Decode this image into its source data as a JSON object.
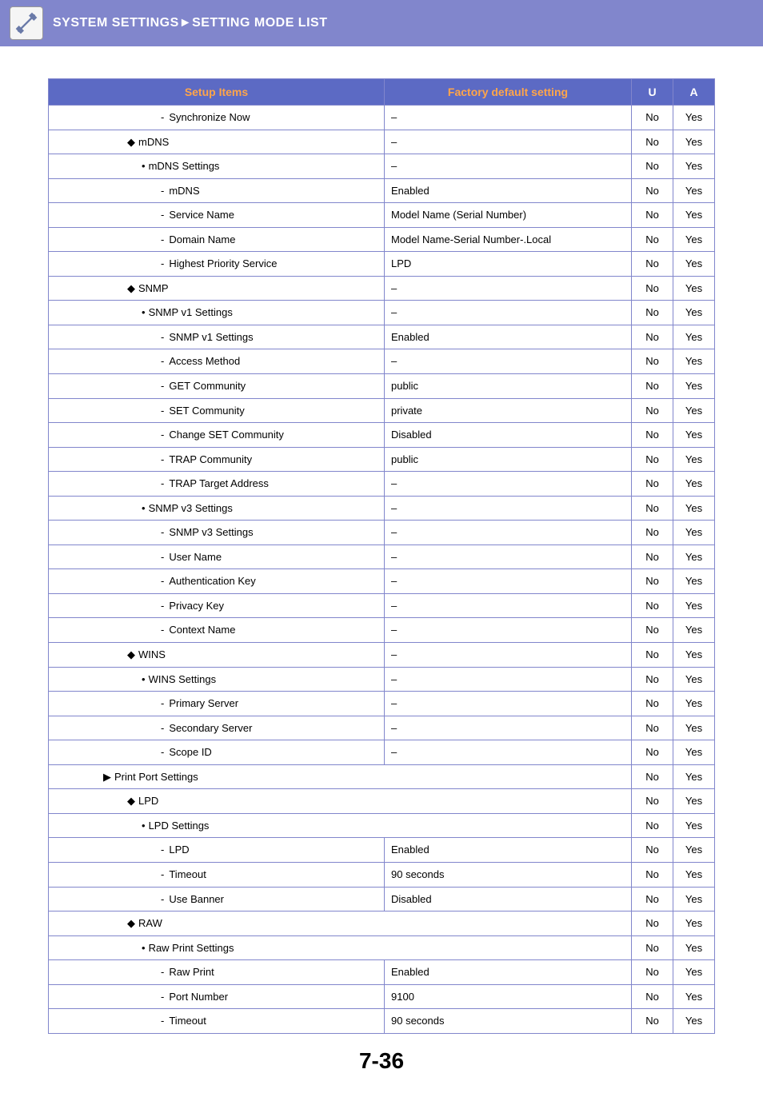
{
  "header": {
    "title": "SYSTEM SETTINGS►SETTING MODE LIST"
  },
  "table": {
    "columns": [
      "Setup Items",
      "Factory default setting",
      "U",
      "A"
    ],
    "rows": [
      {
        "indent": 3,
        "bullet": "dash",
        "label": "Synchronize Now",
        "default": "–",
        "u": "No",
        "a": "Yes"
      },
      {
        "indent": 1,
        "bullet": "diamond",
        "label": "mDNS",
        "default": "–",
        "u": "No",
        "a": "Yes"
      },
      {
        "indent": 2,
        "bullet": "dot",
        "label": "mDNS Settings",
        "default": "–",
        "u": "No",
        "a": "Yes"
      },
      {
        "indent": 3,
        "bullet": "dash",
        "label": "mDNS",
        "default": "Enabled",
        "u": "No",
        "a": "Yes"
      },
      {
        "indent": 3,
        "bullet": "dash",
        "label": "Service Name",
        "default": "Model Name (Serial Number)",
        "u": "No",
        "a": "Yes"
      },
      {
        "indent": 3,
        "bullet": "dash",
        "label": "Domain Name",
        "default": "Model Name-Serial Number-.Local",
        "u": "No",
        "a": "Yes"
      },
      {
        "indent": 3,
        "bullet": "dash",
        "label": "Highest Priority Service",
        "default": "LPD",
        "u": "No",
        "a": "Yes"
      },
      {
        "indent": 1,
        "bullet": "diamond",
        "label": "SNMP",
        "default": "–",
        "u": "No",
        "a": "Yes"
      },
      {
        "indent": 2,
        "bullet": "dot",
        "label": "SNMP v1 Settings",
        "default": "–",
        "u": "No",
        "a": "Yes"
      },
      {
        "indent": 3,
        "bullet": "dash",
        "label": "SNMP v1 Settings",
        "default": "Enabled",
        "u": "No",
        "a": "Yes"
      },
      {
        "indent": 3,
        "bullet": "dash",
        "label": "Access Method",
        "default": "–",
        "u": "No",
        "a": "Yes"
      },
      {
        "indent": 3,
        "bullet": "dash",
        "label": "GET Community",
        "default": "public",
        "u": "No",
        "a": "Yes"
      },
      {
        "indent": 3,
        "bullet": "dash",
        "label": "SET Community",
        "default": "private",
        "u": "No",
        "a": "Yes"
      },
      {
        "indent": 3,
        "bullet": "dash",
        "label": "Change SET Community",
        "default": "Disabled",
        "u": "No",
        "a": "Yes"
      },
      {
        "indent": 3,
        "bullet": "dash",
        "label": "TRAP Community",
        "default": "public",
        "u": "No",
        "a": "Yes"
      },
      {
        "indent": 3,
        "bullet": "dash",
        "label": "TRAP Target Address",
        "default": "–",
        "u": "No",
        "a": "Yes"
      },
      {
        "indent": 2,
        "bullet": "dot",
        "label": "SNMP v3 Settings",
        "default": "–",
        "u": "No",
        "a": "Yes"
      },
      {
        "indent": 3,
        "bullet": "dash",
        "label": "SNMP v3 Settings",
        "default": "–",
        "u": "No",
        "a": "Yes"
      },
      {
        "indent": 3,
        "bullet": "dash",
        "label": "User Name",
        "default": "–",
        "u": "No",
        "a": "Yes"
      },
      {
        "indent": 3,
        "bullet": "dash",
        "label": "Authentication Key",
        "default": "–",
        "u": "No",
        "a": "Yes"
      },
      {
        "indent": 3,
        "bullet": "dash",
        "label": "Privacy Key",
        "default": "–",
        "u": "No",
        "a": "Yes"
      },
      {
        "indent": 3,
        "bullet": "dash",
        "label": "Context Name",
        "default": "–",
        "u": "No",
        "a": "Yes"
      },
      {
        "indent": 1,
        "bullet": "diamond",
        "label": "WINS",
        "default": "–",
        "u": "No",
        "a": "Yes"
      },
      {
        "indent": 2,
        "bullet": "dot",
        "label": "WINS Settings",
        "default": "–",
        "u": "No",
        "a": "Yes"
      },
      {
        "indent": 3,
        "bullet": "dash",
        "label": "Primary Server",
        "default": "–",
        "u": "No",
        "a": "Yes"
      },
      {
        "indent": 3,
        "bullet": "dash",
        "label": "Secondary Server",
        "default": "–",
        "u": "No",
        "a": "Yes"
      },
      {
        "indent": 3,
        "bullet": "dash",
        "label": "Scope ID",
        "default": "–",
        "u": "No",
        "a": "Yes"
      },
      {
        "indent": 0,
        "bullet": "tri",
        "label": "Print Port Settings",
        "span": true,
        "u": "No",
        "a": "Yes"
      },
      {
        "indent": 1,
        "bullet": "diamond",
        "label": "LPD",
        "span": true,
        "u": "No",
        "a": "Yes"
      },
      {
        "indent": 2,
        "bullet": "dot",
        "label": "LPD Settings",
        "span": true,
        "u": "No",
        "a": "Yes"
      },
      {
        "indent": 3,
        "bullet": "dash",
        "label": "LPD",
        "default": "Enabled",
        "u": "No",
        "a": "Yes"
      },
      {
        "indent": 3,
        "bullet": "dash",
        "label": "Timeout",
        "default": "90 seconds",
        "u": "No",
        "a": "Yes"
      },
      {
        "indent": 3,
        "bullet": "dash",
        "label": "Use Banner",
        "default": "Disabled",
        "u": "No",
        "a": "Yes"
      },
      {
        "indent": 1,
        "bullet": "diamond",
        "label": "RAW",
        "span": true,
        "u": "No",
        "a": "Yes"
      },
      {
        "indent": 2,
        "bullet": "dot",
        "label": "Raw Print Settings",
        "span": true,
        "u": "No",
        "a": "Yes"
      },
      {
        "indent": 3,
        "bullet": "dash",
        "label": "Raw Print",
        "default": "Enabled",
        "u": "No",
        "a": "Yes"
      },
      {
        "indent": 3,
        "bullet": "dash",
        "label": "Port Number",
        "default": "9100",
        "u": "No",
        "a": "Yes"
      },
      {
        "indent": 3,
        "bullet": "dash",
        "label": "Timeout",
        "default": "90 seconds",
        "u": "No",
        "a": "Yes"
      }
    ]
  },
  "pageNumber": "7-36"
}
